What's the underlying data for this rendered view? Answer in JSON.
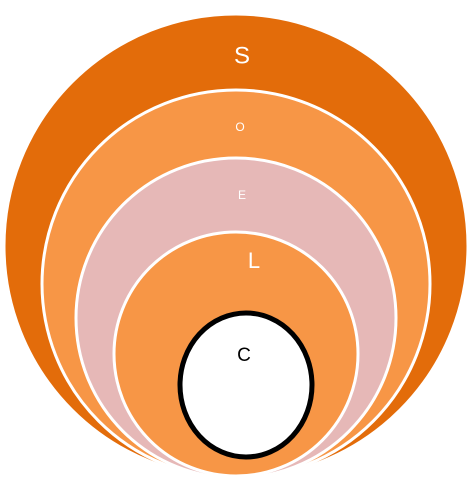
{
  "diagram": {
    "colors": {
      "outer_ring": "#E36C0A",
      "second_ring": "#F79646",
      "third_ring": "#E6B8B7",
      "fourth_ring": "#F79646",
      "core_fill": "#FFFFFF",
      "core_stroke": "#000000",
      "separator": "#FFFFFF"
    },
    "labels": {
      "s": "S",
      "o": "O",
      "e": "E",
      "l": "L",
      "c": "C"
    }
  }
}
